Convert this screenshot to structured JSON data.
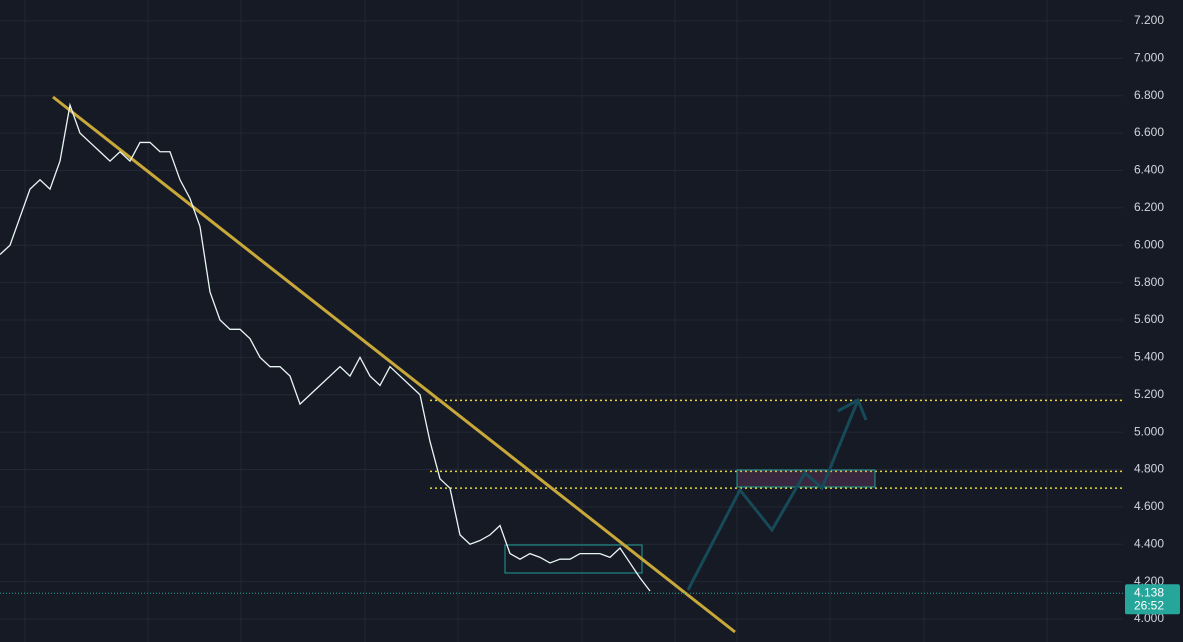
{
  "chart_data": {
    "type": "line",
    "categories": [
      null,
      null,
      null,
      null,
      null,
      null,
      null,
      null,
      null,
      null,
      null,
      null,
      null,
      null,
      null,
      null,
      null,
      null,
      null,
      null,
      null,
      null,
      null,
      null,
      null,
      null,
      null,
      null,
      null,
      null,
      null,
      null,
      null,
      null,
      null,
      null,
      null,
      null,
      null,
      null,
      null,
      null,
      null,
      null,
      null,
      null,
      null,
      null,
      null,
      null,
      null,
      null,
      null,
      null,
      null,
      null,
      null,
      null,
      null,
      null,
      null,
      null,
      null,
      null,
      null,
      null,
      null,
      null,
      null,
      null,
      null,
      null,
      null,
      null,
      null,
      null,
      null,
      null,
      null,
      null,
      null,
      null,
      null,
      null,
      null,
      null,
      null,
      null,
      null,
      null,
      null,
      null,
      null,
      null,
      null,
      null,
      null,
      null,
      null,
      null,
      null,
      null,
      null,
      null,
      null,
      null,
      null,
      null,
      null,
      null,
      null,
      null,
      null
    ],
    "values": [
      5.95,
      6.0,
      6.15,
      6.3,
      6.35,
      6.3,
      6.45,
      6.75,
      6.6,
      6.55,
      6.5,
      6.45,
      6.5,
      6.45,
      6.55,
      6.55,
      6.5,
      6.5,
      6.35,
      6.25,
      6.1,
      5.75,
      5.6,
      5.55,
      5.55,
      5.5,
      5.4,
      5.35,
      5.35,
      5.3,
      5.15,
      5.2,
      5.25,
      5.3,
      5.35,
      5.3,
      5.4,
      5.3,
      5.25,
      5.35,
      5.3,
      5.25,
      5.2,
      4.95,
      4.75,
      4.7,
      4.45,
      4.4,
      4.42,
      4.45,
      4.5,
      4.35,
      4.32,
      4.35,
      4.33,
      4.3,
      4.32,
      4.32,
      4.35,
      4.35,
      4.35,
      4.33,
      4.38,
      4.3,
      4.22,
      4.15,
      null,
      null,
      null,
      null,
      null,
      null,
      null,
      null,
      null,
      null,
      null,
      null,
      null,
      null,
      null,
      null,
      null,
      null,
      null,
      null,
      null,
      null,
      null,
      null,
      null,
      null,
      null,
      null,
      null,
      null,
      null,
      null,
      null,
      null,
      null,
      null,
      null,
      null,
      null,
      null,
      null,
      null,
      null,
      null,
      null,
      null,
      null
    ],
    "color": "#e8f6f4",
    "ylim": [
      3.877,
      7.312
    ],
    "yticks": [
      {
        "value": 4.0,
        "label": "4.000"
      },
      {
        "value": 4.2,
        "label": "4.200"
      },
      {
        "value": 4.4,
        "label": "4.400"
      },
      {
        "value": 4.6,
        "label": "4.600"
      },
      {
        "value": 4.8,
        "label": "4.800"
      },
      {
        "value": 5.0,
        "label": "5.000"
      },
      {
        "value": 5.2,
        "label": "5.200"
      },
      {
        "value": 5.4,
        "label": "5.400"
      },
      {
        "value": 5.6,
        "label": "5.600"
      },
      {
        "value": 5.8,
        "label": "5.800"
      },
      {
        "value": 6.0,
        "label": "6.000"
      },
      {
        "value": 6.2,
        "label": "6.200"
      },
      {
        "value": 6.4,
        "label": "6.400"
      },
      {
        "value": 6.6,
        "label": "6.600"
      },
      {
        "value": 6.8,
        "label": "6.800"
      },
      {
        "value": 7.0,
        "label": "7.000"
      },
      {
        "value": 7.2,
        "label": "7.200"
      }
    ],
    "grid": true,
    "levels": [
      5.17,
      4.79,
      4.7
    ],
    "last_price": {
      "value": 4.138,
      "label": "4.138"
    },
    "countdown": "26:52"
  }
}
